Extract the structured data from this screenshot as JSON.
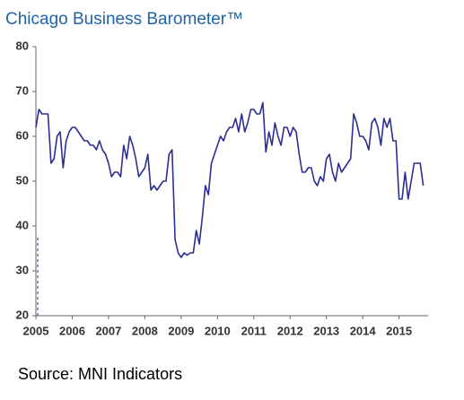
{
  "chart_data": {
    "type": "line",
    "title": "Chicago Business Barometer™",
    "source": "Source: MNI Indicators",
    "x": [
      2005,
      2005.083,
      2005.167,
      2005.25,
      2005.333,
      2005.417,
      2005.5,
      2005.583,
      2005.667,
      2005.75,
      2005.833,
      2005.917,
      2006,
      2006.083,
      2006.167,
      2006.25,
      2006.333,
      2006.417,
      2006.5,
      2006.583,
      2006.667,
      2006.75,
      2006.833,
      2006.917,
      2007,
      2007.083,
      2007.167,
      2007.25,
      2007.333,
      2007.417,
      2007.5,
      2007.583,
      2007.667,
      2007.75,
      2007.833,
      2007.917,
      2008,
      2008.083,
      2008.167,
      2008.25,
      2008.333,
      2008.417,
      2008.5,
      2008.583,
      2008.667,
      2008.75,
      2008.833,
      2008.917,
      2009,
      2009.083,
      2009.167,
      2009.25,
      2009.333,
      2009.417,
      2009.5,
      2009.583,
      2009.667,
      2009.75,
      2009.833,
      2009.917,
      2010,
      2010.083,
      2010.167,
      2010.25,
      2010.333,
      2010.417,
      2010.5,
      2010.583,
      2010.667,
      2010.75,
      2010.833,
      2010.917,
      2011,
      2011.083,
      2011.167,
      2011.25,
      2011.333,
      2011.417,
      2011.5,
      2011.583,
      2011.667,
      2011.75,
      2011.833,
      2011.917,
      2012,
      2012.083,
      2012.167,
      2012.25,
      2012.333,
      2012.417,
      2012.5,
      2012.583,
      2012.667,
      2012.75,
      2012.833,
      2012.917,
      2013,
      2013.083,
      2013.167,
      2013.25,
      2013.333,
      2013.417,
      2013.5,
      2013.583,
      2013.667,
      2013.75,
      2013.833,
      2013.917,
      2014,
      2014.083,
      2014.167,
      2014.25,
      2014.333,
      2014.417,
      2014.5,
      2014.583,
      2014.667,
      2014.75,
      2014.833,
      2014.917,
      2015,
      2015.083,
      2015.167,
      2015.25,
      2015.333,
      2015.417,
      2015.5,
      2015.583,
      2015.667
    ],
    "series": [
      {
        "name": "Chicago Business Barometer",
        "color": "#2b2f94",
        "values": [
          62,
          66,
          65,
          65,
          65,
          54,
          55,
          60,
          61,
          53,
          59,
          61,
          62,
          62,
          61,
          60,
          59,
          59,
          58,
          58,
          57,
          59,
          57,
          56,
          54,
          51,
          52,
          52,
          51,
          58,
          55,
          60,
          58,
          55,
          51,
          52,
          53,
          56,
          48,
          49,
          48,
          49,
          50,
          50,
          56,
          57,
          37,
          34,
          33,
          34,
          33.5,
          34,
          34,
          39,
          36,
          42,
          49,
          47,
          54,
          56,
          58,
          60,
          59,
          61,
          62,
          62,
          64,
          61,
          65,
          61,
          63,
          66,
          66,
          65,
          65,
          67.5,
          56.5,
          61,
          58,
          63,
          60,
          58,
          62,
          62,
          60,
          62,
          61,
          56,
          52,
          52,
          53,
          53,
          50,
          49,
          51,
          50,
          55,
          56,
          52,
          50,
          54,
          52,
          53,
          54,
          55,
          65,
          63,
          60,
          60,
          59,
          57,
          63,
          64,
          62,
          58,
          64,
          62,
          64,
          59,
          59,
          46,
          46,
          52,
          46,
          50,
          54,
          54,
          54,
          49
        ]
      }
    ],
    "xlim": [
      2005,
      2015.8
    ],
    "xticks": [
      2005,
      2006,
      2007,
      2008,
      2009,
      2010,
      2011,
      2012,
      2013,
      2014,
      2015
    ],
    "ylim": [
      20,
      80
    ],
    "yticks": [
      20,
      30,
      40,
      50,
      60,
      70,
      80
    ]
  }
}
